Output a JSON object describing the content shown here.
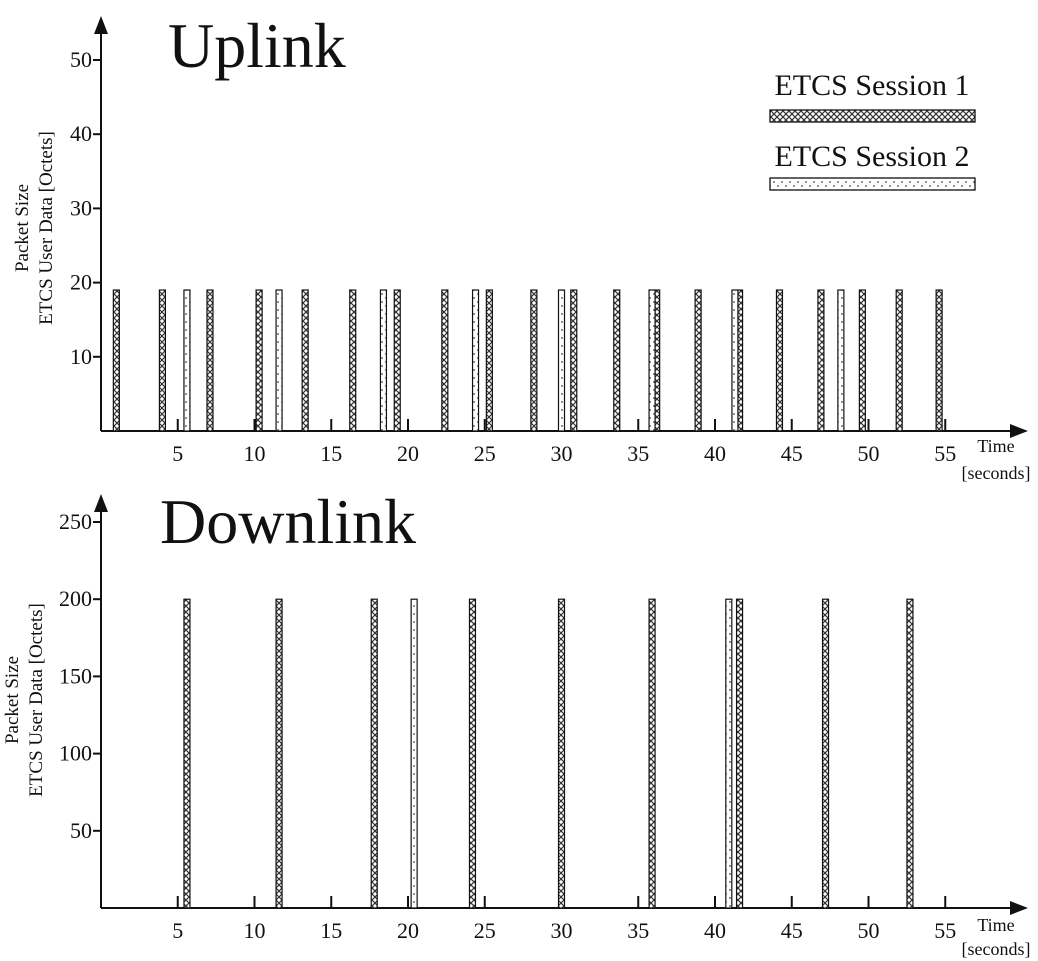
{
  "chart_data": [
    {
      "type": "bar",
      "title": "Uplink",
      "ylabel_line1": "Packet  Size",
      "ylabel_line2": "ETCS User Data [Octets]",
      "xlabel_line1": "Time",
      "xlabel_line2": "[seconds]",
      "xlim": [
        0,
        57
      ],
      "ylim": [
        0,
        50
      ],
      "x_ticks": [
        5,
        10,
        15,
        20,
        25,
        30,
        35,
        40,
        45,
        50,
        55
      ],
      "y_ticks": [
        10,
        20,
        30,
        40,
        50
      ],
      "legend_position": "top-right",
      "series": [
        {
          "name": "ETCS  Session 1",
          "pattern": "crosshatch",
          "x": [
            1.0,
            4.0,
            7.1,
            10.3,
            13.3,
            16.4,
            19.3,
            22.4,
            25.3,
            28.2,
            30.8,
            33.6,
            36.2,
            38.9,
            41.6,
            44.2,
            46.9,
            49.6,
            52.0,
            54.6
          ],
          "values": [
            19,
            19,
            19,
            19,
            19,
            19,
            19,
            19,
            19,
            19,
            19,
            19,
            19,
            19,
            19,
            19,
            19,
            19,
            19,
            19
          ]
        },
        {
          "name": "ETCS  Session 2",
          "pattern": "dotted",
          "x": [
            5.6,
            11.6,
            18.4,
            24.4,
            30.0,
            35.9,
            41.3,
            48.2
          ],
          "values": [
            19,
            19,
            19,
            19,
            19,
            19,
            19,
            19
          ]
        }
      ]
    },
    {
      "type": "bar",
      "title": "Downlink",
      "ylabel_line1": "Packet  Size",
      "ylabel_line2": "ETCS User Data [Octets]",
      "xlabel_line1": "Time",
      "xlabel_line2": "[seconds]",
      "xlim": [
        0,
        57
      ],
      "ylim": [
        0,
        250
      ],
      "x_ticks": [
        5,
        10,
        15,
        20,
        25,
        30,
        35,
        40,
        45,
        50,
        55
      ],
      "y_ticks": [
        50,
        100,
        150,
        200,
        250
      ],
      "series": [
        {
          "name": "ETCS  Session 1",
          "pattern": "crosshatch",
          "x": [
            5.6,
            11.6,
            17.8,
            24.2,
            30.0,
            35.9,
            41.6,
            47.2,
            52.7
          ],
          "values": [
            200,
            200,
            200,
            200,
            200,
            200,
            200,
            200,
            200
          ]
        },
        {
          "name": "ETCS  Session 2",
          "pattern": "dotted",
          "x": [
            20.4,
            40.9
          ],
          "values": [
            200,
            200
          ]
        }
      ]
    }
  ]
}
